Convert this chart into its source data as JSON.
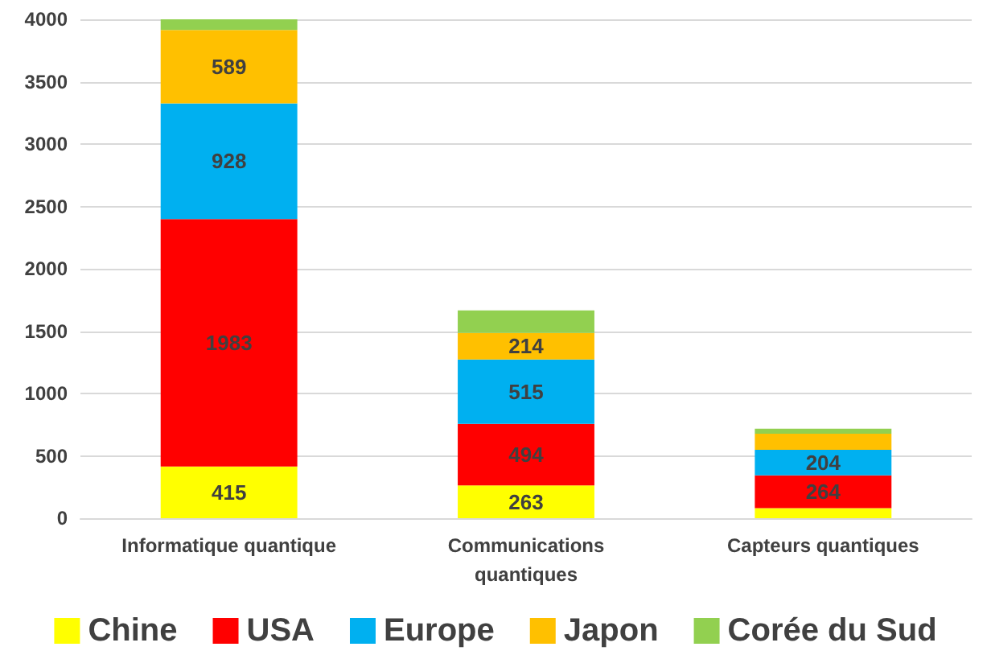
{
  "chart_data": {
    "type": "bar",
    "stacked": true,
    "categories": [
      "Informatique quantique",
      "Communications quantiques",
      "Capteurs quantiques"
    ],
    "series": [
      {
        "name": "Chine",
        "color": "#ffff00",
        "values": [
          415,
          263,
          80
        ],
        "value_labels": [
          "415",
          "263",
          null
        ]
      },
      {
        "name": "USA",
        "color": "#ff0000",
        "values": [
          1983,
          494,
          264
        ],
        "value_labels": [
          "1983",
          "494",
          "264"
        ]
      },
      {
        "name": "Europe",
        "color": "#00b0f0",
        "values": [
          928,
          515,
          204
        ],
        "value_labels": [
          "928",
          "515",
          "204"
        ]
      },
      {
        "name": "Japon",
        "color": "#ffc000",
        "values": [
          589,
          214,
          130
        ],
        "value_labels": [
          "589",
          "214",
          null
        ]
      },
      {
        "name": "Corée du Sud",
        "color": "#92d050",
        "values": [
          90,
          180,
          40
        ],
        "value_labels": [
          null,
          null,
          null
        ]
      }
    ],
    "ylim": [
      0,
      4000
    ],
    "yticks": [
      0,
      500,
      1000,
      1500,
      2000,
      2500,
      3000,
      3500,
      4000
    ],
    "grid": "y",
    "legend": "bottom"
  }
}
